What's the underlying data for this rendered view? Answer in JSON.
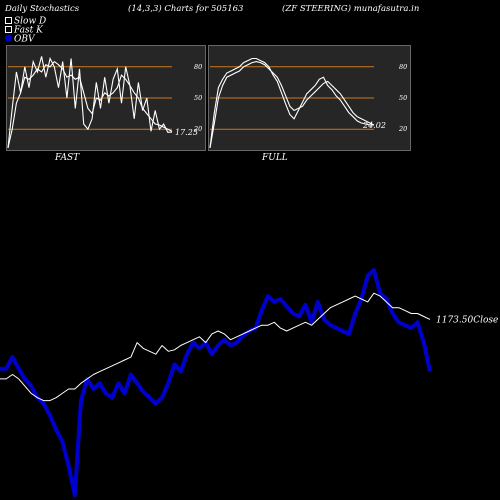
{
  "header": {
    "left": "Daily Stochastics",
    "center": "(14,3,3) Charts for 505163",
    "right": "(ZF STEERING) munafasutra.in"
  },
  "legend": {
    "items": [
      {
        "label": "Slow  D",
        "color": "#ffffff",
        "marker": "hollow-square"
      },
      {
        "label": "Fast K",
        "color": "#ffffff",
        "marker": "hollow-square"
      },
      {
        "label": "OBV",
        "color": "#0000cc",
        "marker": "filled-circle"
      }
    ]
  },
  "chart_data": [
    {
      "type": "line",
      "name": "FAST",
      "ylim": [
        0,
        100
      ],
      "yticks": [
        20,
        50,
        80
      ],
      "ref_lines": [
        20,
        50,
        80
      ],
      "ref_color": "#c8781e",
      "end_value_label": "17.25",
      "series": [
        {
          "name": "Slow D",
          "color": "#ffffff",
          "values": [
            2,
            20,
            45,
            55,
            70,
            68,
            72,
            78,
            75,
            82,
            80,
            85,
            82,
            78,
            70,
            72,
            68,
            70,
            55,
            40,
            35,
            50,
            48,
            55,
            52,
            55,
            60,
            72,
            68,
            62,
            55,
            50,
            40,
            35,
            30,
            25,
            24,
            22,
            20,
            18
          ]
        },
        {
          "name": "Fast K",
          "color": "#ffffff",
          "values": [
            2,
            40,
            75,
            55,
            80,
            60,
            85,
            75,
            90,
            70,
            88,
            80,
            60,
            85,
            50,
            88,
            40,
            78,
            25,
            20,
            30,
            65,
            40,
            70,
            45,
            68,
            78,
            45,
            80,
            62,
            30,
            65,
            38,
            50,
            18,
            38,
            20,
            25,
            17,
            17.25
          ]
        }
      ]
    },
    {
      "type": "line",
      "name": "FULL",
      "ylim": [
        0,
        100
      ],
      "yticks": [
        20,
        50,
        80
      ],
      "ref_lines": [
        20,
        50,
        80
      ],
      "ref_color": "#c8781e",
      "end_value_label": "24.02",
      "series": [
        {
          "name": "Slow D",
          "color": "#ffffff",
          "values": [
            2,
            25,
            50,
            62,
            70,
            72,
            74,
            76,
            80,
            82,
            84,
            85,
            84,
            82,
            78,
            74,
            70,
            62,
            52,
            42,
            38,
            40,
            42,
            48,
            52,
            56,
            60,
            64,
            66,
            62,
            58,
            54,
            48,
            42,
            36,
            32,
            30,
            28,
            26,
            24
          ]
        },
        {
          "name": "Fast K",
          "color": "#ffffff",
          "values": [
            2,
            35,
            60,
            68,
            74,
            76,
            78,
            80,
            84,
            86,
            88,
            88,
            86,
            84,
            80,
            72,
            66,
            55,
            44,
            34,
            30,
            38,
            46,
            54,
            58,
            62,
            68,
            70,
            62,
            58,
            52,
            48,
            42,
            36,
            32,
            28,
            26,
            25,
            24,
            24.02
          ]
        }
      ]
    },
    {
      "type": "line",
      "name": "OBV",
      "end_value_label": "1173.50Close",
      "series": [
        {
          "name": "OBV",
          "color": "#0000cc",
          "values": [
            62,
            62,
            70,
            62,
            55,
            50,
            42,
            38,
            30,
            20,
            12,
            -5,
            -25,
            40,
            55,
            48,
            52,
            45,
            42,
            52,
            45,
            58,
            52,
            46,
            42,
            38,
            42,
            52,
            65,
            60,
            72,
            80,
            76,
            80,
            72,
            78,
            82,
            78,
            80,
            85,
            88,
            90,
            102,
            112,
            108,
            110,
            105,
            100,
            98,
            106,
            94,
            108,
            96,
            92,
            90,
            88,
            86,
            100,
            110,
            126,
            130,
            114,
            110,
            100,
            94,
            92,
            90,
            94,
            80,
            60
          ]
        },
        {
          "name": "Close",
          "color": "#ffffff",
          "values": [
            55,
            55,
            58,
            55,
            50,
            45,
            42,
            40,
            40,
            42,
            45,
            48,
            48,
            52,
            55,
            58,
            60,
            62,
            64,
            66,
            68,
            70,
            80,
            76,
            74,
            72,
            78,
            74,
            75,
            78,
            80,
            82,
            84,
            80,
            86,
            88,
            86,
            82,
            84,
            86,
            88,
            90,
            92,
            92,
            94,
            90,
            88,
            90,
            92,
            94,
            92,
            96,
            100,
            104,
            106,
            108,
            110,
            112,
            110,
            108,
            114,
            112,
            108,
            104,
            104,
            102,
            100,
            100,
            98,
            96
          ]
        }
      ]
    }
  ]
}
